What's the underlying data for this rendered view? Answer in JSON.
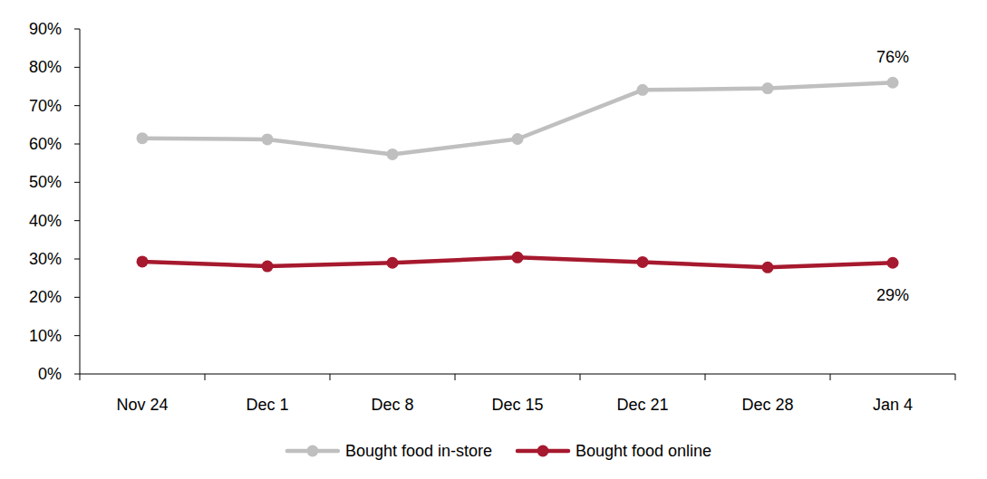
{
  "chart_data": {
    "type": "line",
    "categories": [
      "Nov 24",
      "Dec 1",
      "Dec 8",
      "Dec 15",
      "Dec 21",
      "Dec 28",
      "Jan 4"
    ],
    "series": [
      {
        "name": "Bought food in-store",
        "color": "#bfbfbf",
        "marker": "circle",
        "values": [
          61.5,
          61.2,
          57.3,
          61.3,
          74.1,
          74.5,
          76
        ],
        "value_labels": [
          null,
          null,
          null,
          null,
          null,
          null,
          "76%"
        ]
      },
      {
        "name": "Bought food online",
        "color": "#a6192e",
        "marker": "circle",
        "values": [
          29.3,
          28.1,
          29.0,
          30.4,
          29.2,
          27.8,
          29
        ],
        "value_labels": [
          null,
          null,
          null,
          null,
          null,
          null,
          "29%"
        ]
      }
    ],
    "ylim": [
      0,
      90
    ],
    "yticks": [
      {
        "value": 0,
        "label": "0%"
      },
      {
        "value": 10,
        "label": "10%"
      },
      {
        "value": 20,
        "label": "20%"
      },
      {
        "value": 30,
        "label": "30%"
      },
      {
        "value": 40,
        "label": "40%"
      },
      {
        "value": 50,
        "label": "50%"
      },
      {
        "value": 60,
        "label": "60%"
      },
      {
        "value": 70,
        "label": "70%"
      },
      {
        "value": 80,
        "label": "80%"
      },
      {
        "value": 90,
        "label": "90%"
      }
    ],
    "grid": false,
    "data_labels": true,
    "legend": "bottom"
  }
}
